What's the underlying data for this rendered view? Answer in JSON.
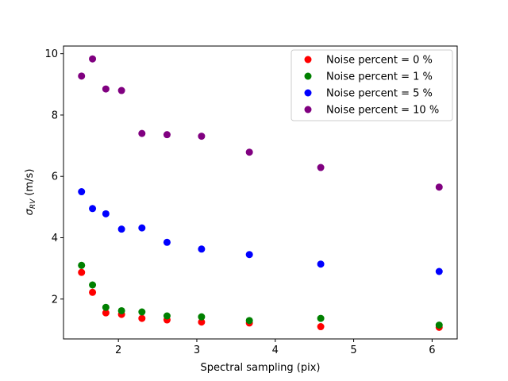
{
  "chart_data": {
    "type": "scatter",
    "title": "",
    "xlabel": "Spectral sampling (pix)",
    "ylabel_main": "σ",
    "ylabel_sub": "RV",
    "ylabel_unit": " (m/s)",
    "xlim": [
      1.3,
      6.32
    ],
    "ylim": [
      0.7,
      10.25
    ],
    "xticks": [
      2,
      3,
      4,
      5,
      6
    ],
    "yticks": [
      2,
      4,
      6,
      8,
      10
    ],
    "legend_position": "upper-right",
    "x": [
      1.53,
      1.67,
      1.84,
      2.04,
      2.3,
      2.62,
      3.06,
      3.67,
      4.58,
      6.09
    ],
    "series": [
      {
        "name": "Noise percent = 0 %",
        "color": "#ff0000",
        "values": [
          2.87,
          2.22,
          1.55,
          1.5,
          1.37,
          1.32,
          1.25,
          1.22,
          1.1,
          1.08
        ]
      },
      {
        "name": "Noise percent = 1 %",
        "color": "#008000",
        "values": [
          3.1,
          2.46,
          1.73,
          1.62,
          1.58,
          1.45,
          1.42,
          1.3,
          1.37,
          1.15
        ]
      },
      {
        "name": "Noise percent = 5 %",
        "color": "#0000ff",
        "values": [
          5.5,
          4.95,
          4.78,
          4.28,
          4.32,
          3.85,
          3.63,
          3.45,
          3.14,
          2.9
        ]
      },
      {
        "name": "Noise percent = 10 %",
        "color": "#800080",
        "values": [
          9.27,
          9.83,
          8.85,
          8.8,
          7.4,
          7.36,
          7.31,
          6.79,
          6.29,
          5.65
        ]
      }
    ]
  }
}
